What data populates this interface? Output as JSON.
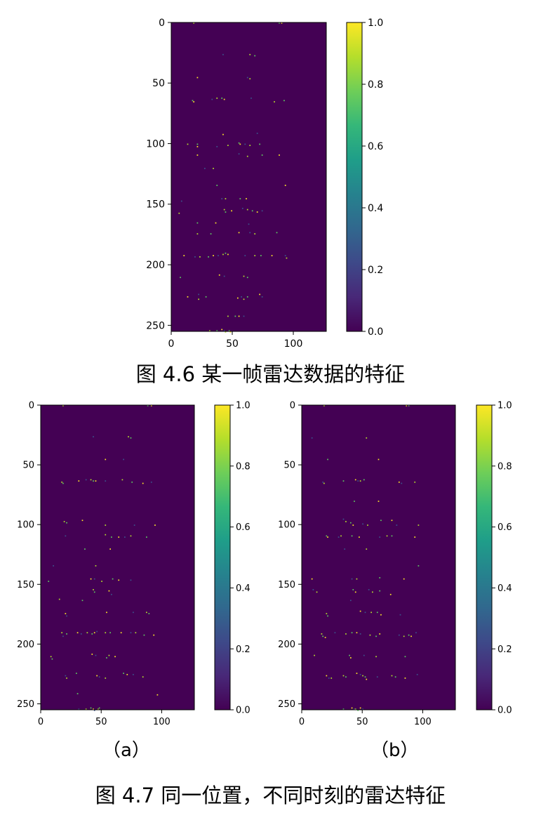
{
  "figures": {
    "fig46_caption": "图 4.6  某一帧雷达数据的特征",
    "fig47_caption": "图 4.7 同一位置，不同时刻的雷达特征",
    "sub_a": "（a）",
    "sub_b": "（b）"
  },
  "colors": {
    "background": "#440154",
    "points": [
      "#b5de2b",
      "#5ec962",
      "#fde725",
      "#3b528b"
    ]
  },
  "chart_data": [
    {
      "id": "fig46",
      "type": "heatmap",
      "title": "",
      "xlim": [
        0,
        127
      ],
      "ylim": [
        255,
        0
      ],
      "xticks": [
        0,
        50,
        100
      ],
      "yticks": [
        0,
        50,
        100,
        150,
        200,
        250
      ],
      "colorbar": {
        "range": [
          0,
          1
        ],
        "ticks": [
          "0.0",
          "0.2",
          "0.4",
          "0.6",
          "0.8",
          "1.0"
        ],
        "colormap": "viridis"
      },
      "points": [
        [
          18,
          0
        ],
        [
          88,
          0
        ],
        [
          90,
          0
        ],
        [
          42,
          26
        ],
        [
          64,
          26
        ],
        [
          68,
          27
        ],
        [
          21,
          45
        ],
        [
          62,
          45
        ],
        [
          64,
          46
        ],
        [
          17,
          64
        ],
        [
          18,
          65
        ],
        [
          33,
          63
        ],
        [
          37,
          62
        ],
        [
          41,
          62
        ],
        [
          43,
          63
        ],
        [
          65,
          62
        ],
        [
          84,
          65
        ],
        [
          92,
          64
        ],
        [
          42,
          92
        ],
        [
          70,
          91
        ],
        [
          13,
          100
        ],
        [
          21,
          100
        ],
        [
          21,
          102
        ],
        [
          37,
          102
        ],
        [
          46,
          101
        ],
        [
          55,
          99
        ],
        [
          56,
          100
        ],
        [
          60,
          100
        ],
        [
          64,
          101
        ],
        [
          72,
          100
        ],
        [
          21,
          109
        ],
        [
          55,
          108
        ],
        [
          62,
          110
        ],
        [
          74,
          109
        ],
        [
          88,
          109
        ],
        [
          27,
          120
        ],
        [
          34,
          120
        ],
        [
          37,
          134
        ],
        [
          93,
          134
        ],
        [
          41,
          145
        ],
        [
          44,
          145
        ],
        [
          56,
          145
        ],
        [
          61,
          145
        ],
        [
          8,
          147
        ],
        [
          43,
          154
        ],
        [
          44,
          156
        ],
        [
          49,
          155
        ],
        [
          58,
          153
        ],
        [
          62,
          154
        ],
        [
          66,
          155
        ],
        [
          70,
          156
        ],
        [
          74,
          155
        ],
        [
          6,
          157
        ],
        [
          21,
          165
        ],
        [
          36,
          165
        ],
        [
          63,
          166
        ],
        [
          21,
          174
        ],
        [
          32,
          174
        ],
        [
          55,
          173
        ],
        [
          64,
          173
        ],
        [
          68,
          174
        ],
        [
          86,
          173
        ],
        [
          10,
          192
        ],
        [
          19,
          193
        ],
        [
          23,
          193
        ],
        [
          30,
          193
        ],
        [
          34,
          192
        ],
        [
          38,
          192
        ],
        [
          42,
          191
        ],
        [
          44,
          190
        ],
        [
          46,
          191
        ],
        [
          60,
          192
        ],
        [
          68,
          192
        ],
        [
          73,
          192
        ],
        [
          82,
          192
        ],
        [
          93,
          192
        ],
        [
          94,
          194
        ],
        [
          7,
          210
        ],
        [
          39,
          208
        ],
        [
          43,
          209
        ],
        [
          59,
          209
        ],
        [
          62,
          210
        ],
        [
          13,
          226
        ],
        [
          22,
          224
        ],
        [
          22,
          228
        ],
        [
          28,
          226
        ],
        [
          54,
          227
        ],
        [
          57,
          226
        ],
        [
          59,
          228
        ],
        [
          62,
          226
        ],
        [
          72,
          224
        ],
        [
          74,
          226
        ],
        [
          46,
          242
        ],
        [
          52,
          242
        ],
        [
          55,
          242
        ],
        [
          59,
          242
        ],
        [
          31,
          254
        ],
        [
          37,
          254
        ],
        [
          41,
          253
        ],
        [
          43,
          254
        ],
        [
          44,
          255
        ],
        [
          47,
          254
        ],
        [
          48,
          255
        ]
      ]
    },
    {
      "id": "fig47a",
      "type": "heatmap",
      "title": "",
      "xlim": [
        0,
        127
      ],
      "ylim": [
        255,
        0
      ],
      "xticks": [
        0,
        50,
        100
      ],
      "yticks": [
        0,
        50,
        100,
        150,
        200,
        250
      ],
      "colorbar": {
        "range": [
          0,
          1
        ],
        "ticks": [
          "0.0",
          "0.2",
          "0.4",
          "0.6",
          "0.8",
          "1.0"
        ],
        "colormap": "viridis"
      },
      "points": [
        [
          18,
          0
        ],
        [
          88,
          0
        ],
        [
          91,
          0
        ],
        [
          43,
          26
        ],
        [
          72,
          26
        ],
        [
          74,
          27
        ],
        [
          53,
          45
        ],
        [
          68,
          45
        ],
        [
          17,
          64
        ],
        [
          18,
          65
        ],
        [
          31,
          63
        ],
        [
          37,
          62
        ],
        [
          41,
          62
        ],
        [
          43,
          63
        ],
        [
          45,
          63
        ],
        [
          53,
          63
        ],
        [
          67,
          62
        ],
        [
          75,
          64
        ],
        [
          84,
          65
        ],
        [
          91,
          64
        ],
        [
          19,
          97
        ],
        [
          21,
          98
        ],
        [
          34,
          96
        ],
        [
          20,
          109
        ],
        [
          53,
          108
        ],
        [
          58,
          110
        ],
        [
          64,
          110
        ],
        [
          69,
          110
        ],
        [
          74,
          109
        ],
        [
          87,
          110
        ],
        [
          94,
          100
        ],
        [
          77,
          100
        ],
        [
          53,
          100
        ],
        [
          36,
          120
        ],
        [
          57,
          120
        ],
        [
          10,
          134
        ],
        [
          45,
          134
        ],
        [
          6,
          147
        ],
        [
          41,
          145
        ],
        [
          44,
          145
        ],
        [
          50,
          147
        ],
        [
          59,
          145
        ],
        [
          64,
          146
        ],
        [
          74,
          146
        ],
        [
          43,
          154
        ],
        [
          44,
          156
        ],
        [
          56,
          155
        ],
        [
          58,
          158
        ],
        [
          15,
          162
        ],
        [
          34,
          163
        ],
        [
          54,
          173
        ],
        [
          76,
          173
        ],
        [
          87,
          173
        ],
        [
          89,
          174
        ],
        [
          20,
          174
        ],
        [
          21,
          176
        ],
        [
          17,
          190
        ],
        [
          21,
          191
        ],
        [
          30,
          190
        ],
        [
          33,
          191
        ],
        [
          38,
          190
        ],
        [
          42,
          191
        ],
        [
          44,
          190
        ],
        [
          46,
          189
        ],
        [
          53,
          190
        ],
        [
          57,
          190
        ],
        [
          66,
          190
        ],
        [
          74,
          190
        ],
        [
          78,
          190
        ],
        [
          85,
          192
        ],
        [
          93,
          192
        ],
        [
          18,
          193
        ],
        [
          8,
          210
        ],
        [
          9,
          212
        ],
        [
          42,
          208
        ],
        [
          45,
          209
        ],
        [
          56,
          209
        ],
        [
          54,
          211
        ],
        [
          61,
          210
        ],
        [
          20,
          226
        ],
        [
          21,
          228
        ],
        [
          29,
          224
        ],
        [
          46,
          226
        ],
        [
          48,
          227
        ],
        [
          53,
          228
        ],
        [
          68,
          224
        ],
        [
          71,
          225
        ],
        [
          76,
          225
        ],
        [
          84,
          227
        ],
        [
          30,
          241
        ],
        [
          96,
          242
        ],
        [
          31,
          254
        ],
        [
          37,
          254
        ],
        [
          41,
          253
        ],
        [
          43,
          254
        ],
        [
          44,
          255
        ],
        [
          47,
          254
        ],
        [
          48,
          253
        ]
      ]
    },
    {
      "id": "fig47b",
      "type": "heatmap",
      "title": "",
      "xlim": [
        0,
        127
      ],
      "ylim": [
        255,
        0
      ],
      "xticks": [
        0,
        50,
        100
      ],
      "yticks": [
        0,
        50,
        100,
        150,
        200,
        250
      ],
      "colorbar": {
        "range": [
          0,
          1
        ],
        "ticks": [
          "0.0",
          "0.2",
          "0.4",
          "0.6",
          "0.8",
          "1.0"
        ],
        "colormap": "viridis"
      },
      "points": [
        [
          18,
          0
        ],
        [
          88,
          0
        ],
        [
          86,
          0
        ],
        [
          8,
          27
        ],
        [
          53,
          27
        ],
        [
          21,
          45
        ],
        [
          63,
          45
        ],
        [
          17,
          64
        ],
        [
          18,
          65
        ],
        [
          34,
          63
        ],
        [
          44,
          62
        ],
        [
          46,
          63
        ],
        [
          48,
          63
        ],
        [
          51,
          62
        ],
        [
          80,
          64
        ],
        [
          82,
          65
        ],
        [
          93,
          64
        ],
        [
          43,
          80
        ],
        [
          63,
          80
        ],
        [
          34,
          95
        ],
        [
          36,
          97
        ],
        [
          40,
          98
        ],
        [
          42,
          100
        ],
        [
          50,
          99
        ],
        [
          54,
          100
        ],
        [
          65,
          96
        ],
        [
          74,
          96
        ],
        [
          78,
          100
        ],
        [
          96,
          100
        ],
        [
          20,
          109
        ],
        [
          21,
          110
        ],
        [
          30,
          110
        ],
        [
          32,
          109
        ],
        [
          41,
          109
        ],
        [
          47,
          110
        ],
        [
          64,
          110
        ],
        [
          70,
          109
        ],
        [
          74,
          109
        ],
        [
          93,
          110
        ],
        [
          35,
          120
        ],
        [
          53,
          120
        ],
        [
          96,
          134
        ],
        [
          8,
          145
        ],
        [
          41,
          145
        ],
        [
          45,
          145
        ],
        [
          64,
          144
        ],
        [
          84,
          145
        ],
        [
          9,
          154
        ],
        [
          12,
          156
        ],
        [
          42,
          154
        ],
        [
          44,
          156
        ],
        [
          55,
          154
        ],
        [
          58,
          156
        ],
        [
          64,
          155
        ],
        [
          73,
          158
        ],
        [
          40,
          163
        ],
        [
          20,
          174
        ],
        [
          21,
          176
        ],
        [
          48,
          172
        ],
        [
          52,
          173
        ],
        [
          57,
          173
        ],
        [
          62,
          173
        ],
        [
          65,
          175
        ],
        [
          81,
          175
        ],
        [
          16,
          191
        ],
        [
          17,
          193
        ],
        [
          19,
          194
        ],
        [
          27,
          190
        ],
        [
          36,
          191
        ],
        [
          41,
          190
        ],
        [
          45,
          190
        ],
        [
          48,
          191
        ],
        [
          56,
          192
        ],
        [
          61,
          193
        ],
        [
          64,
          191
        ],
        [
          80,
          192
        ],
        [
          84,
          193
        ],
        [
          88,
          192
        ],
        [
          90,
          193
        ],
        [
          94,
          190
        ],
        [
          10,
          209
        ],
        [
          39,
          209
        ],
        [
          40,
          211
        ],
        [
          51,
          209
        ],
        [
          61,
          210
        ],
        [
          85,
          210
        ],
        [
          20,
          226
        ],
        [
          22,
          228
        ],
        [
          34,
          226
        ],
        [
          36,
          227
        ],
        [
          45,
          224
        ],
        [
          48,
          225
        ],
        [
          50,
          226
        ],
        [
          52,
          227
        ],
        [
          53,
          229
        ],
        [
          62,
          227
        ],
        [
          74,
          226
        ],
        [
          77,
          227
        ],
        [
          85,
          228
        ],
        [
          95,
          225
        ],
        [
          24,
          228
        ],
        [
          34,
          254
        ],
        [
          41,
          253
        ],
        [
          43,
          254
        ],
        [
          44,
          254
        ],
        [
          46,
          255
        ],
        [
          48,
          253
        ],
        [
          50,
          254
        ]
      ]
    }
  ]
}
